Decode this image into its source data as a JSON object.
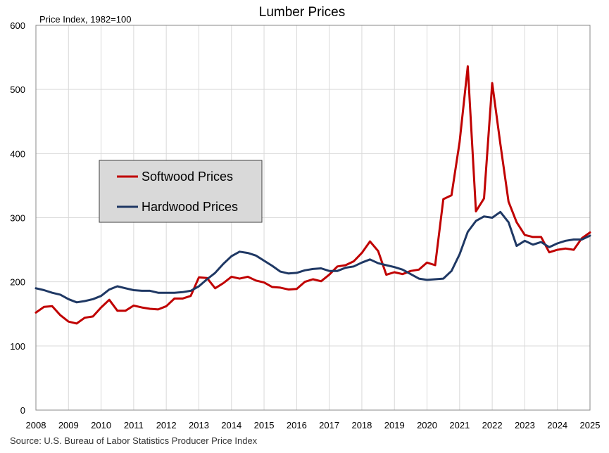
{
  "chart_data": {
    "type": "line",
    "title": "Lumber Prices",
    "unit_label": "Price Index, 1982=100",
    "source": "Source: U.S. Bureau of Labor Statistics Producer Price Index",
    "xlim": [
      2008,
      2025
    ],
    "ylim": [
      0,
      600
    ],
    "x_ticks": [
      "2008",
      "2009",
      "2010",
      "2011",
      "2012",
      "2013",
      "2014",
      "2015",
      "2016",
      "2017",
      "2018",
      "2019",
      "2020",
      "2021",
      "2022",
      "2023",
      "2024",
      "2025"
    ],
    "y_ticks": [
      "0",
      "100",
      "200",
      "300",
      "400",
      "500",
      "600"
    ],
    "grid": true,
    "legend_position": "left-middle",
    "x": [
      2008.0,
      2008.25,
      2008.5,
      2008.75,
      2009.0,
      2009.25,
      2009.5,
      2009.75,
      2010.0,
      2010.25,
      2010.5,
      2010.75,
      2011.0,
      2011.25,
      2011.5,
      2011.75,
      2012.0,
      2012.25,
      2012.5,
      2012.75,
      2013.0,
      2013.25,
      2013.5,
      2013.75,
      2014.0,
      2014.25,
      2014.5,
      2014.75,
      2015.0,
      2015.25,
      2015.5,
      2015.75,
      2016.0,
      2016.25,
      2016.5,
      2016.75,
      2017.0,
      2017.25,
      2017.5,
      2017.75,
      2018.0,
      2018.25,
      2018.5,
      2018.75,
      2019.0,
      2019.25,
      2019.5,
      2019.75,
      2020.0,
      2020.25,
      2020.5,
      2020.75,
      2021.0,
      2021.25,
      2021.5,
      2021.75,
      2022.0,
      2022.25,
      2022.5,
      2022.75,
      2023.0,
      2023.25,
      2023.5,
      2023.75,
      2024.0,
      2024.25,
      2024.5,
      2024.75,
      2025.0
    ],
    "series": [
      {
        "name": "Softwood Prices",
        "color": "#C00000",
        "values": [
          152,
          161,
          162,
          148,
          138,
          135,
          144,
          146,
          160,
          172,
          155,
          155,
          163,
          160,
          158,
          157,
          162,
          174,
          174,
          178,
          207,
          206,
          190,
          198,
          208,
          205,
          208,
          202,
          199,
          192,
          191,
          188,
          189,
          200,
          204,
          201,
          211,
          224,
          226,
          232,
          245,
          263,
          248,
          211,
          215,
          212,
          217,
          219,
          230,
          226,
          329,
          335,
          418,
          536,
          310,
          330,
          510,
          415,
          325,
          293,
          273,
          270,
          270,
          246,
          250,
          252,
          250,
          268,
          277
        ]
      },
      {
        "name": "Hardwood Prices",
        "color": "#1F3864",
        "values": [
          190,
          187,
          183,
          180,
          173,
          168,
          170,
          173,
          178,
          188,
          193,
          190,
          187,
          186,
          186,
          183,
          183,
          183,
          184,
          186,
          193,
          204,
          214,
          228,
          240,
          247,
          245,
          241,
          233,
          225,
          216,
          213,
          214,
          218,
          220,
          221,
          217,
          217,
          222,
          224,
          230,
          235,
          229,
          226,
          223,
          219,
          212,
          205,
          203,
          204,
          205,
          217,
          243,
          278,
          295,
          302,
          300,
          309,
          293,
          256,
          264,
          258,
          262,
          254,
          260,
          264,
          266,
          266,
          272
        ]
      }
    ]
  }
}
